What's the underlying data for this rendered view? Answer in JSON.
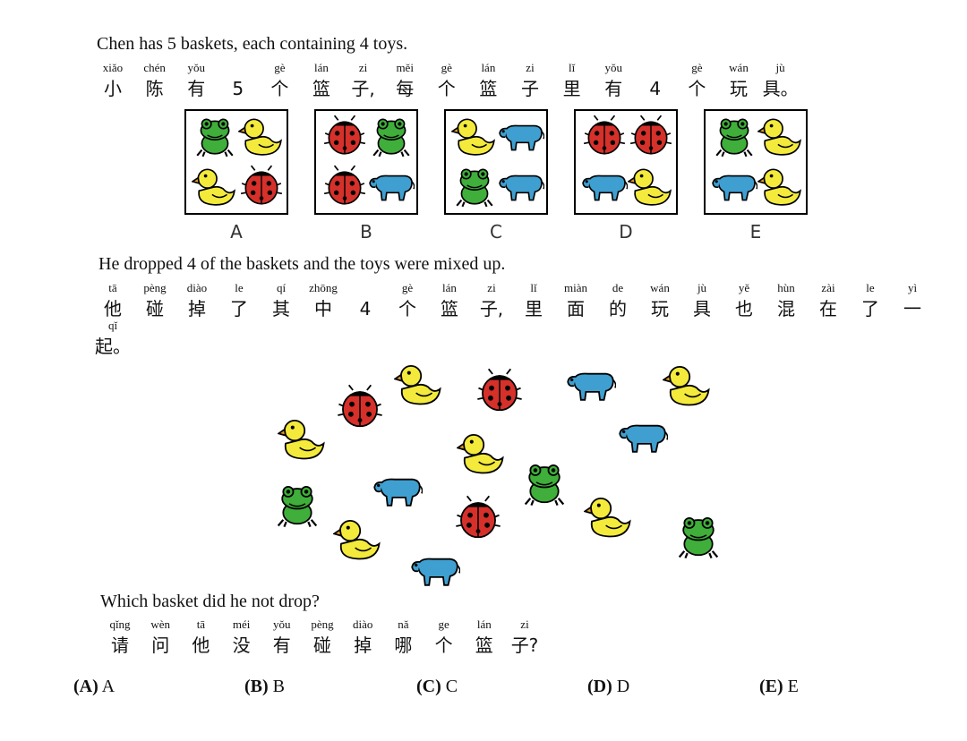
{
  "q1_en": "Chen has 5 baskets, each containing 4 toys.",
  "q1_zh": [
    {
      "py": "xiǎo",
      "hz": "小"
    },
    {
      "py": "chén",
      "hz": "陈"
    },
    {
      "py": "yǒu",
      "hz": "有"
    },
    {
      "py": "",
      "hz": "5"
    },
    {
      "py": "gè",
      "hz": "个"
    },
    {
      "py": "lán",
      "hz": "篮"
    },
    {
      "py": "zi",
      "hz": "子,"
    },
    {
      "py": "měi",
      "hz": "每"
    },
    {
      "py": "gè",
      "hz": "个"
    },
    {
      "py": "lán",
      "hz": "篮"
    },
    {
      "py": "zi",
      "hz": "子"
    },
    {
      "py": "lǐ",
      "hz": "里"
    },
    {
      "py": "yǒu",
      "hz": "有"
    },
    {
      "py": "",
      "hz": "4"
    },
    {
      "py": "gè",
      "hz": "个"
    },
    {
      "py": "wán",
      "hz": "玩"
    },
    {
      "py": "jù",
      "hz": "具。"
    }
  ],
  "baskets": [
    {
      "label": "A",
      "toys": [
        "frog",
        "duck",
        "duck",
        "ladybug"
      ]
    },
    {
      "label": "B",
      "toys": [
        "ladybug",
        "frog",
        "ladybug",
        "cow"
      ]
    },
    {
      "label": "C",
      "toys": [
        "duck",
        "cow",
        "frog",
        "cow"
      ]
    },
    {
      "label": "D",
      "toys": [
        "ladybug",
        "ladybug",
        "cow",
        "duck"
      ]
    },
    {
      "label": "E",
      "toys": [
        "frog",
        "duck",
        "cow",
        "duck"
      ]
    }
  ],
  "q2_en": "He dropped 4 of the baskets and the toys were mixed up.",
  "q2_zh": [
    {
      "py": "tā",
      "hz": "他"
    },
    {
      "py": "pèng",
      "hz": "碰"
    },
    {
      "py": "diào",
      "hz": "掉"
    },
    {
      "py": "le",
      "hz": "了"
    },
    {
      "py": "qí",
      "hz": "其"
    },
    {
      "py": "zhōng",
      "hz": "中"
    },
    {
      "py": "",
      "hz": "4"
    },
    {
      "py": "gè",
      "hz": "个"
    },
    {
      "py": "lán",
      "hz": "篮"
    },
    {
      "py": "zi",
      "hz": "子,"
    },
    {
      "py": "lǐ",
      "hz": "里"
    },
    {
      "py": "miàn",
      "hz": "面"
    },
    {
      "py": "de",
      "hz": "的"
    },
    {
      "py": "wán",
      "hz": "玩"
    },
    {
      "py": "jù",
      "hz": "具"
    },
    {
      "py": "yě",
      "hz": "也"
    },
    {
      "py": "hùn",
      "hz": "混"
    },
    {
      "py": "zài",
      "hz": "在"
    },
    {
      "py": "le",
      "hz": "了"
    },
    {
      "py": "yì",
      "hz": "一"
    }
  ],
  "q2_zh_cont": [
    {
      "py": "qǐ",
      "hz": "起。"
    }
  ],
  "pile": [
    {
      "type": "ladybug"
    },
    {
      "type": "duck"
    },
    {
      "type": "ladybug"
    },
    {
      "type": "cow"
    },
    {
      "type": "duck"
    },
    {
      "type": "duck"
    },
    {
      "type": "duck"
    },
    {
      "type": "cow"
    },
    {
      "type": "frog"
    },
    {
      "type": "cow"
    },
    {
      "type": "frog"
    },
    {
      "type": "ladybug"
    },
    {
      "type": "duck"
    },
    {
      "type": "duck"
    },
    {
      "type": "cow"
    },
    {
      "type": "frog"
    }
  ],
  "q3_en": "Which basket did he not drop?",
  "q3_zh": [
    {
      "py": "qǐng",
      "hz": "请"
    },
    {
      "py": "wèn",
      "hz": "问"
    },
    {
      "py": "tā",
      "hz": "他"
    },
    {
      "py": "méi",
      "hz": "没"
    },
    {
      "py": "yǒu",
      "hz": "有"
    },
    {
      "py": "pèng",
      "hz": "碰"
    },
    {
      "py": "diào",
      "hz": "掉"
    },
    {
      "py": "nǎ",
      "hz": "哪"
    },
    {
      "py": "ge",
      "hz": "个"
    },
    {
      "py": "lán",
      "hz": "篮"
    },
    {
      "py": "zi",
      "hz": "子?"
    }
  ],
  "options": [
    {
      "key": "(A)",
      "text": "A"
    },
    {
      "key": "(B)",
      "text": "B"
    },
    {
      "key": "(C)",
      "text": "C"
    },
    {
      "key": "(D)",
      "text": "D"
    },
    {
      "key": "(E)",
      "text": "E"
    }
  ],
  "colors": {
    "frog": "#3fae3a",
    "duck": "#f3ea3c",
    "ladybug": "#d6302a",
    "cow": "#3f9fd0"
  }
}
